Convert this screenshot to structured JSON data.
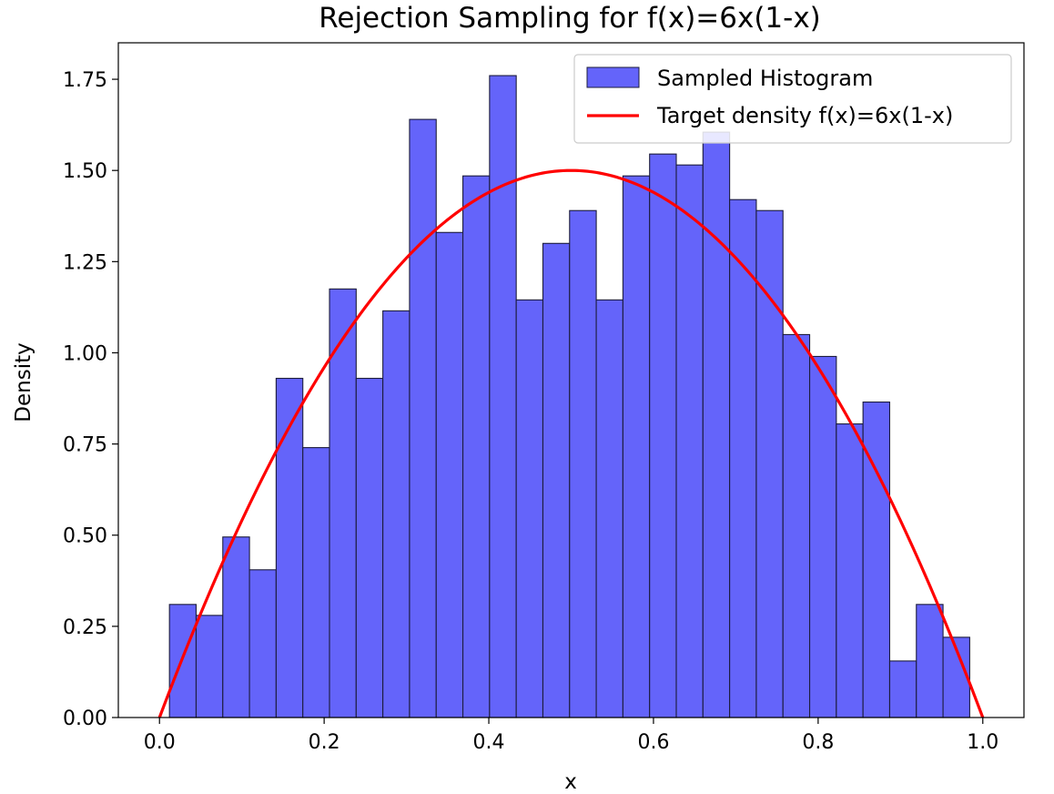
{
  "chart_data": {
    "type": "bar",
    "title": "Rejection Sampling for f(x)=6x(1-x)",
    "xlabel": "x",
    "ylabel": "Density",
    "xlim": [
      -0.05,
      1.05
    ],
    "ylim": [
      0,
      1.85
    ],
    "x_ticks": [
      "0.0",
      "0.2",
      "0.4",
      "0.6",
      "0.8",
      "1.0"
    ],
    "y_ticks": [
      "0.00",
      "0.25",
      "0.50",
      "0.75",
      "1.00",
      "1.25",
      "1.50",
      "1.75"
    ],
    "grid": false,
    "legend_position": "top-right",
    "bins": {
      "edges": [
        0.0121,
        0.0445,
        0.0769,
        0.1093,
        0.1417,
        0.1741,
        0.2065,
        0.2389,
        0.2713,
        0.3037,
        0.3361,
        0.3685,
        0.4009,
        0.4333,
        0.4657,
        0.4981,
        0.5305,
        0.5629,
        0.5953,
        0.6277,
        0.6601,
        0.6925,
        0.7249,
        0.7573,
        0.7897,
        0.8221,
        0.8545,
        0.8869,
        0.9193,
        0.9517,
        0.9841
      ],
      "values": [
        0.31,
        0.28,
        0.495,
        0.405,
        0.93,
        0.74,
        1.175,
        0.93,
        1.115,
        1.64,
        1.33,
        1.485,
        1.76,
        1.145,
        1.3,
        1.39,
        1.145,
        1.485,
        1.545,
        1.515,
        1.605,
        1.42,
        1.39,
        1.05,
        0.99,
        0.805,
        0.865,
        0.155,
        0.31,
        0.22
      ]
    },
    "series": [
      {
        "name": "Sampled Histogram",
        "type": "bar",
        "color": "#6464fa",
        "edge_color": "#1c1c3c"
      },
      {
        "name": "Target density f(x)=6x(1-x)",
        "type": "line",
        "color": "#ff0000",
        "function": "6x(1-x)",
        "x_range": [
          0,
          1
        ]
      }
    ]
  }
}
